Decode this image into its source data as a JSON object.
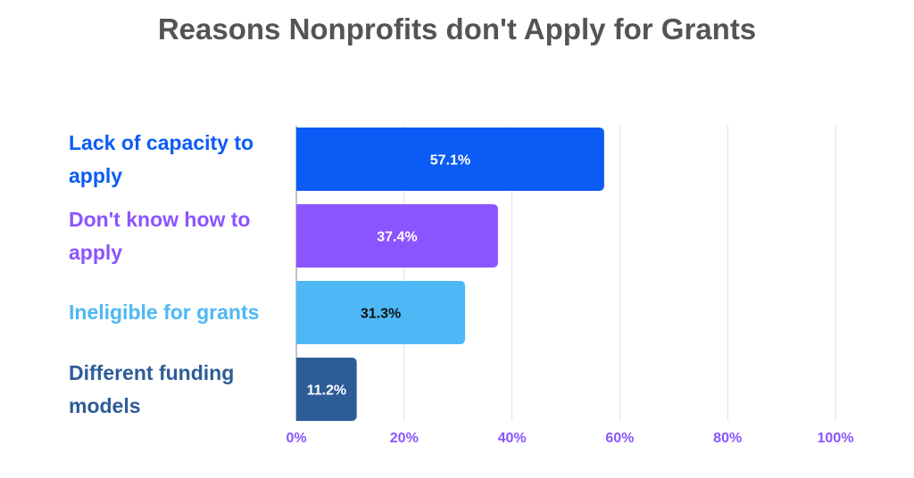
{
  "chart_data": {
    "type": "bar",
    "orientation": "horizontal",
    "title": "Reasons Nonprofits don't Apply for Grants",
    "xlabel": "",
    "ylabel": "",
    "categories": [
      "Lack of capacity to apply",
      "Don't know how to apply",
      "Ineligible for grants",
      "Different funding models"
    ],
    "values": [
      57.1,
      37.4,
      31.3,
      11.2
    ],
    "value_labels": [
      "57.1%",
      "37.4%",
      "31.3%",
      "11.2%"
    ],
    "bar_colors": [
      "#0B5CF5",
      "#8C54FF",
      "#4DB8F5",
      "#2E5C96"
    ],
    "label_colors": [
      "#0B5CF5",
      "#8C54FF",
      "#4DB8F5",
      "#2E5C96"
    ],
    "value_label_colors": [
      "#ffffff",
      "#ffffff",
      "#111111",
      "#ffffff"
    ],
    "xlim": [
      0,
      100
    ],
    "x_ticks": [
      0,
      20,
      40,
      60,
      80,
      100
    ],
    "x_tick_labels": [
      "0%",
      "20%",
      "40%",
      "60%",
      "80%",
      "100%"
    ],
    "tick_color": "#8C54FF",
    "grid": true,
    "grid_color": "#E3E3EE",
    "legend": "none"
  }
}
